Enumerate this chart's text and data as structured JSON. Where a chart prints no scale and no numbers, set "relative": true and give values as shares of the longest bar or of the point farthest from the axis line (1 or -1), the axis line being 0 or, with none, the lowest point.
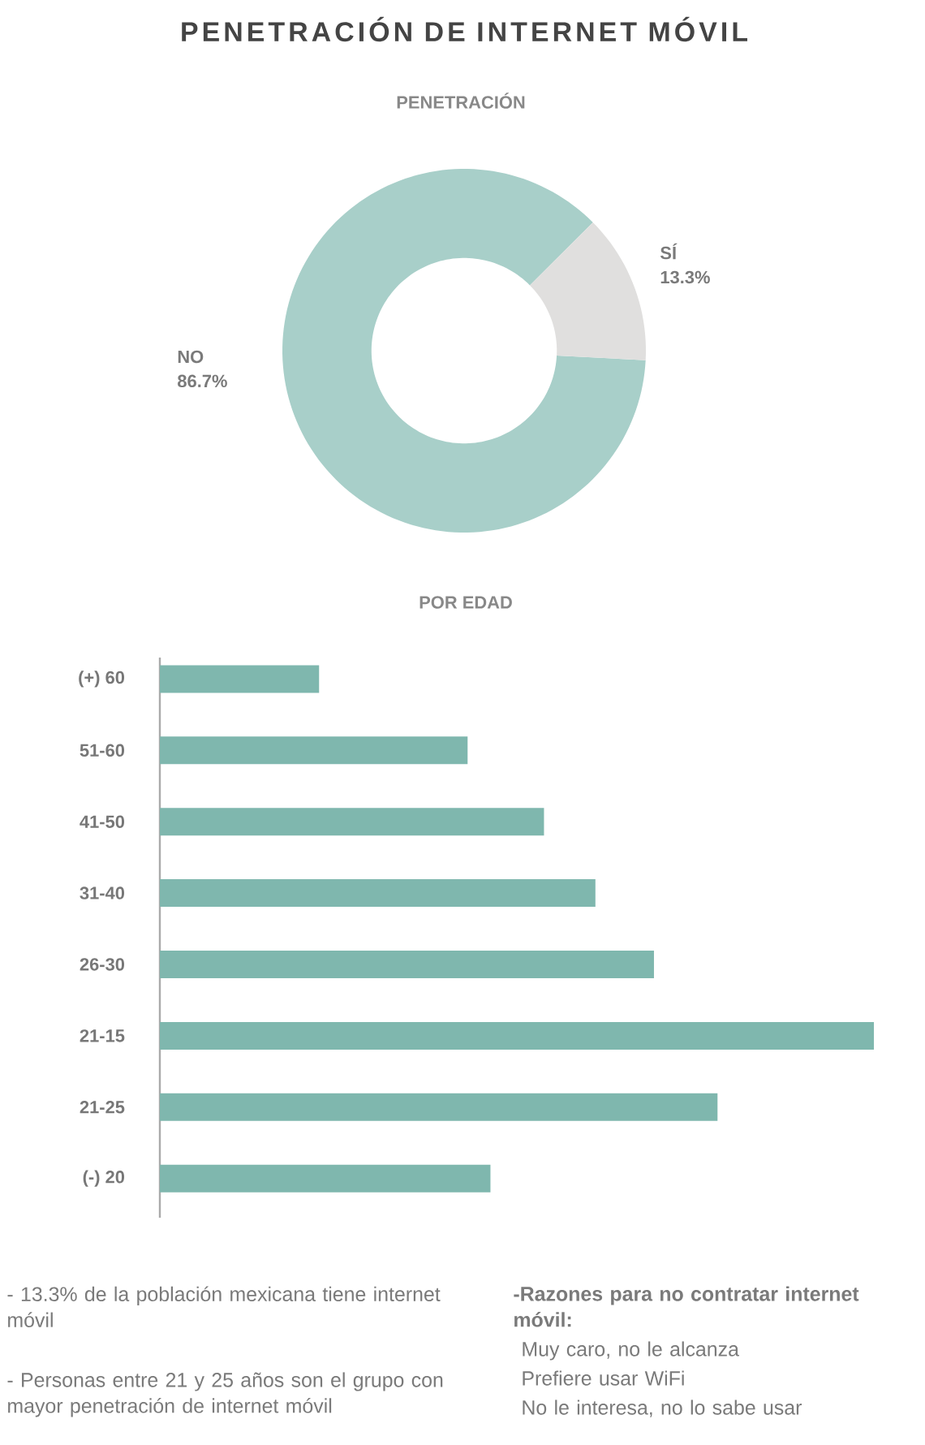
{
  "chart_data": [
    {
      "type": "donut",
      "title": "PENETRACIÓN DE INTERNET MÓVIL",
      "subtitle": "PENETRACIÓN",
      "categories": [
        "NO",
        "SÍ"
      ],
      "values": [
        86.7,
        13.3
      ],
      "colors": [
        "#a8cfc9",
        "#e0dfde"
      ],
      "value_labels": [
        "86.7%",
        "13.3%"
      ]
    },
    {
      "type": "bar",
      "orientation": "horizontal",
      "relative": true,
      "title": "POR EDAD",
      "categories": [
        "(+) 60",
        "51-60",
        "41-50",
        "31-40",
        "26-30",
        "21-15",
        "21-25",
        "(-) 20"
      ],
      "values": [
        0.223,
        0.431,
        0.538,
        0.61,
        0.692,
        1,
        0.781,
        0.463
      ],
      "color": "#7fb7ae",
      "annotations": [
        "- 13.3% de la población mexicana tiene internet móvil",
        "- Personas entre 21 y 25 años son el grupo con mayor penetración de internet móvil",
        "-Razones para no contratar internet móvil:",
        "Muy caro, no le alcanza",
        "Prefiere usar WiFi",
        "No le interesa, no lo sabe usar"
      ]
    }
  ]
}
